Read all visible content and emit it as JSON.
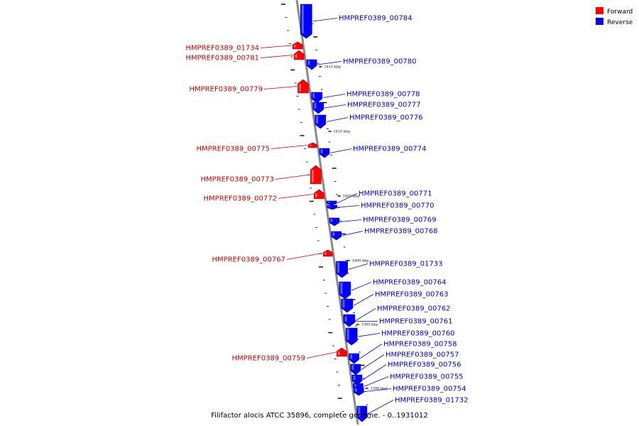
{
  "caption": "Filifactor alocis ATCC 35896, complete genome. - 0..1931012",
  "legend": {
    "forward": {
      "label": "Forward",
      "color": "#ff0000"
    },
    "reverse": {
      "label": "Reverse",
      "color": "#0000ff"
    }
  },
  "text_colors": {
    "forward": "#cc0000",
    "reverse": "#0000cc"
  },
  "scale_ticks": [
    "1415 kbp",
    "1410 kbp",
    "1405 kbp",
    "1400 kbp",
    "1395 kbp",
    "1390 kbp"
  ],
  "genes": [
    {
      "name": "HMPREF0389_00784",
      "strand": "reverse"
    },
    {
      "name": "HMPREF0389_01734",
      "strand": "forward"
    },
    {
      "name": "HMPREF0389_00781",
      "strand": "forward"
    },
    {
      "name": "HMPREF0389_00780",
      "strand": "reverse"
    },
    {
      "name": "HMPREF0389_00779",
      "strand": "forward"
    },
    {
      "name": "HMPREF0389_00778",
      "strand": "reverse"
    },
    {
      "name": "HMPREF0389_00777",
      "strand": "reverse"
    },
    {
      "name": "HMPREF0389_00776",
      "strand": "reverse"
    },
    {
      "name": "HMPREF0389_00775",
      "strand": "forward"
    },
    {
      "name": "HMPREF0389_00774",
      "strand": "reverse"
    },
    {
      "name": "HMPREF0389_00773",
      "strand": "forward"
    },
    {
      "name": "HMPREF0389_00772",
      "strand": "forward"
    },
    {
      "name": "HMPREF0389_00771",
      "strand": "reverse"
    },
    {
      "name": "HMPREF0389_00770",
      "strand": "reverse"
    },
    {
      "name": "HMPREF0389_00769",
      "strand": "reverse"
    },
    {
      "name": "HMPREF0389_00768",
      "strand": "reverse"
    },
    {
      "name": "HMPREF0389_00767",
      "strand": "forward"
    },
    {
      "name": "HMPREF0389_01733",
      "strand": "reverse"
    },
    {
      "name": "HMPREF0389_00764",
      "strand": "reverse"
    },
    {
      "name": "HMPREF0389_00763",
      "strand": "reverse"
    },
    {
      "name": "HMPREF0389_00762",
      "strand": "reverse"
    },
    {
      "name": "HMPREF0389_00761",
      "strand": "reverse"
    },
    {
      "name": "HMPREF0389_00760",
      "strand": "reverse"
    },
    {
      "name": "HMPREF0389_00759",
      "strand": "forward"
    },
    {
      "name": "HMPREF0389_00758",
      "strand": "reverse"
    },
    {
      "name": "HMPREF0389_00757",
      "strand": "reverse"
    },
    {
      "name": "HMPREF0389_00756",
      "strand": "reverse"
    },
    {
      "name": "HMPREF0389_00755",
      "strand": "reverse"
    },
    {
      "name": "HMPREF0389_00754",
      "strand": "reverse"
    },
    {
      "name": "HMPREF0389_01732",
      "strand": "reverse"
    }
  ]
}
